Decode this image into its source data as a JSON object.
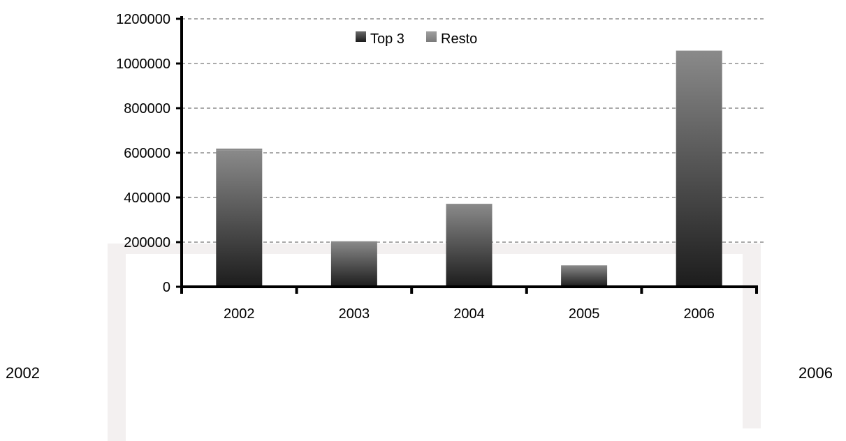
{
  "chart_data": {
    "type": "bar",
    "stacked": true,
    "categories": [
      "2002",
      "2003",
      "2004",
      "2005",
      "2006"
    ],
    "series": [
      {
        "name": "Top 3",
        "values": [
          612000,
          203000,
          371000,
          96000,
          1057000
        ],
        "color": "#2a2a2a"
      },
      {
        "name": "Resto",
        "values": [
          7000,
          1000,
          1000,
          0,
          1000
        ],
        "color": "#8a8a8a"
      }
    ],
    "yticks": [
      "0",
      "200000",
      "400000",
      "600000",
      "800000",
      "1000000",
      "1200000"
    ],
    "ylim": [
      0,
      1200000
    ],
    "grid": true,
    "legend_position": "top-center"
  },
  "side_labels": {
    "left": "2002",
    "right": "2006"
  },
  "colors": {
    "panel": "#f3f0f0",
    "axis": "#000000",
    "grid": "#555555"
  }
}
